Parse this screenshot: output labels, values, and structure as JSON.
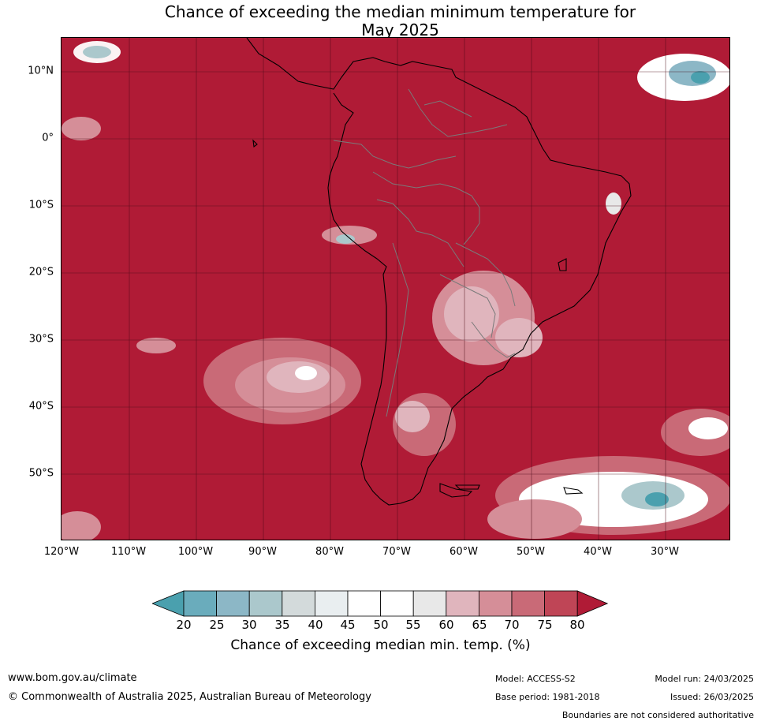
{
  "title_line1": "Chance of exceeding the median minimum temperature for",
  "title_line2": "May 2025",
  "lat_labels": [
    "10°N",
    "0°",
    "10°S",
    "20°S",
    "30°S",
    "40°S",
    "50°S"
  ],
  "lon_labels": [
    "120°W",
    "110°W",
    "100°W",
    "90°W",
    "80°W",
    "70°W",
    "60°W",
    "50°W",
    "40°W",
    "30°W"
  ],
  "colorbar": {
    "ticks": [
      "20",
      "25",
      "30",
      "35",
      "40",
      "45",
      "50",
      "55",
      "60",
      "65",
      "70",
      "75",
      "80"
    ],
    "label": "Chance of exceeding median min. temp. (%)",
    "colors": [
      "#4aa0ae",
      "#6aacbc",
      "#8cb7c6",
      "#abc8cc",
      "#d3dadb",
      "#e9eef0",
      "#ffffff",
      "#ffffff",
      "#e8e8e8",
      "#e0b5bd",
      "#d58e98",
      "#c96a77",
      "#bf4556",
      "#b01b36"
    ]
  },
  "footer": {
    "website": "www.bom.gov.au/climate",
    "copyright": "© Commonwealth of Australia 2025, Australian Bureau of Meteorology",
    "model": "Model: ACCESS-S2",
    "base_period": "Base period: 1981-2018",
    "model_run": "Model run: 24/03/2025",
    "issued": "Issued: 26/03/2025",
    "disclaimer": "Boundaries are not considered authoritative"
  }
}
